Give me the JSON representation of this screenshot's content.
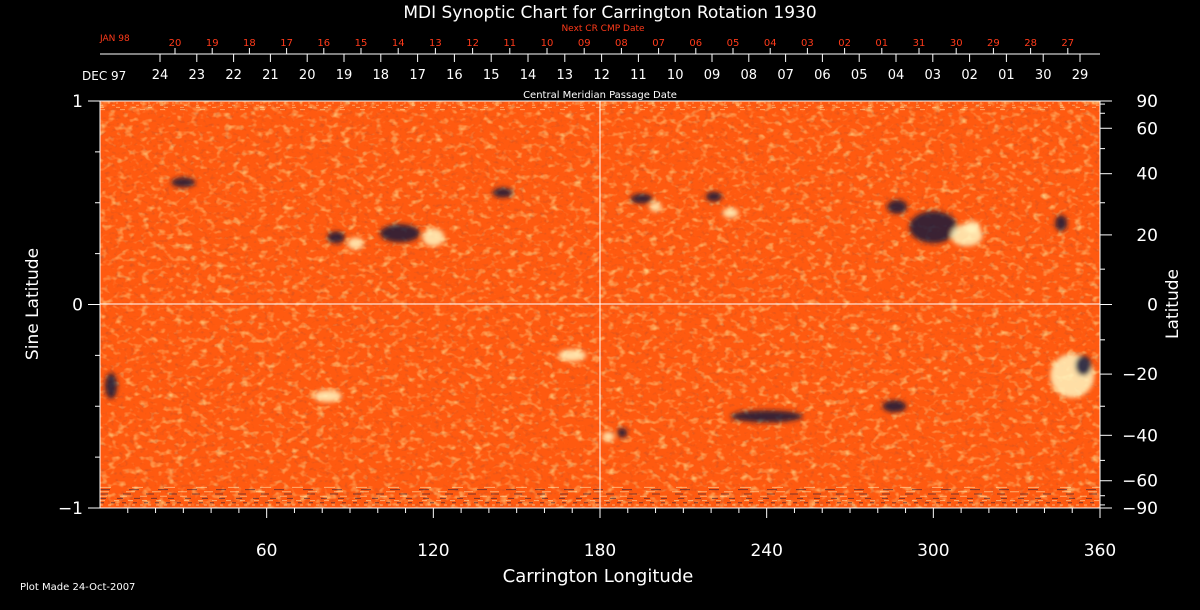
{
  "title": "MDI Synoptic Chart for Carrington Rotation 1930",
  "footer": "Plot Made 24-Oct-2007",
  "top_axis": {
    "next_label": "Next CR CMP Date",
    "next_start_label": "JAN 98",
    "next_ticks": [
      "20",
      "19",
      "18",
      "17",
      "16",
      "15",
      "14",
      "13",
      "12",
      "11",
      "10",
      "09",
      "08",
      "07",
      "06",
      "05",
      "04",
      "03",
      "02",
      "01",
      "31",
      "30",
      "29",
      "28",
      "27"
    ],
    "cmp_start_label": "DEC 97",
    "cmp_ticks": [
      "24",
      "23",
      "22",
      "21",
      "20",
      "19",
      "18",
      "17",
      "16",
      "15",
      "14",
      "13",
      "12",
      "11",
      "10",
      "09",
      "08",
      "07",
      "06",
      "05",
      "04",
      "03",
      "02",
      "01",
      "30",
      "29"
    ],
    "cmp_label": "Central Meridian Passage Date"
  },
  "left_axis": {
    "label": "Sine Latitude",
    "ticks": [
      "1",
      "0",
      "−1"
    ]
  },
  "right_axis": {
    "label": "Latitude",
    "ticks": [
      "90",
      "60",
      "40",
      "20",
      "0",
      "−20",
      "−40",
      "−60",
      "−90"
    ]
  },
  "bottom_axis": {
    "label": "Carrington Longitude",
    "ticks": [
      "60",
      "120",
      "180",
      "240",
      "300",
      "360"
    ]
  },
  "colors": {
    "background": "#000000",
    "map_base": "#ff5a10",
    "positive": "#fff6c0",
    "negative": "#14143a",
    "top_red": "#ff3a1a",
    "axis": "#ffffff"
  },
  "map": {
    "x_range": [
      0,
      360
    ],
    "y_range": [
      -1,
      1
    ],
    "crosshair_longitude": 180,
    "crosshair_latitude": 0
  }
}
